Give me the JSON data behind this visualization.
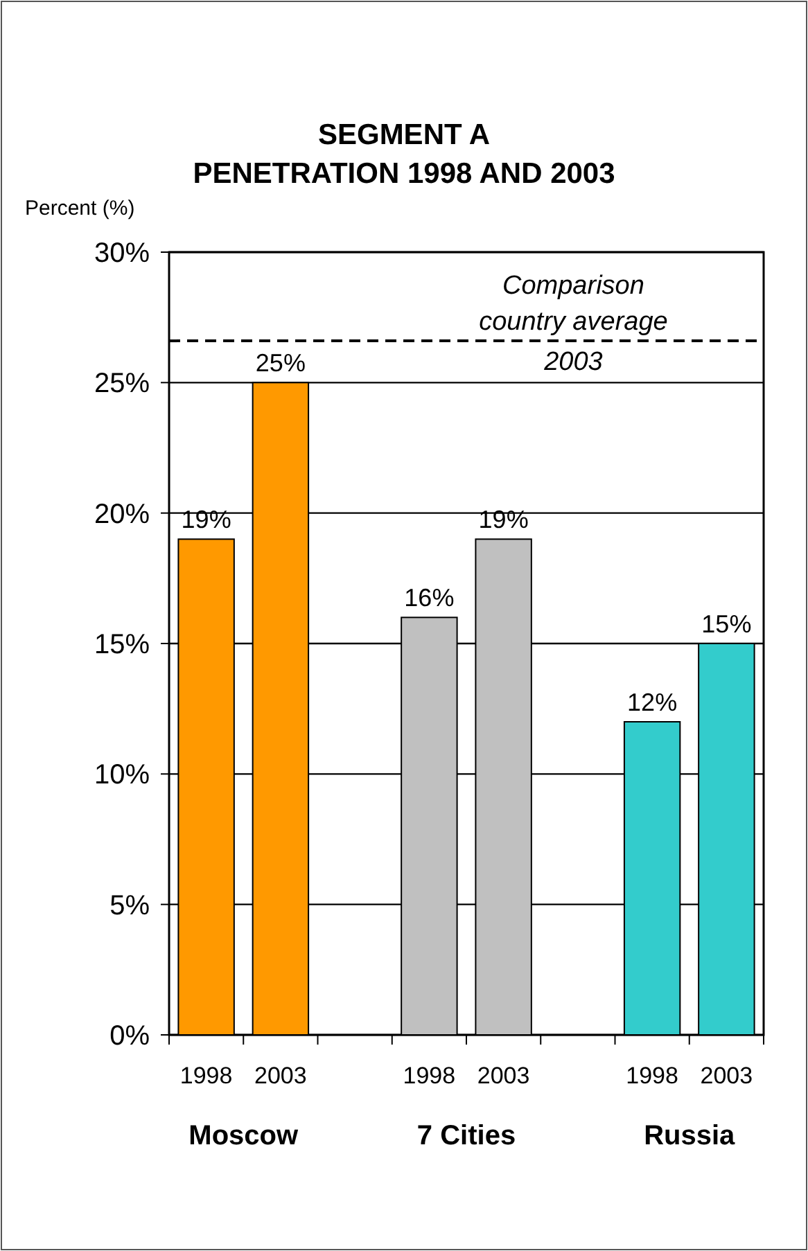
{
  "chart_data": {
    "type": "bar",
    "title": "SEGMENT A\nPENETRATION 1998 AND 2003",
    "ylabel": "Percent (%)",
    "categories": [
      "1998",
      "2003",
      null,
      "1998",
      "2003",
      null,
      "1998",
      "2003"
    ],
    "series": [
      {
        "color": "#ff9900",
        "values": [
          19,
          25,
          null,
          null,
          null,
          null,
          null,
          null
        ],
        "value_labels": [
          "19%",
          "25%",
          null,
          null,
          null,
          null,
          null,
          null
        ]
      },
      {
        "color": "#c0c0c0",
        "values": [
          null,
          null,
          null,
          16,
          19,
          null,
          null,
          null
        ],
        "value_labels": [
          null,
          null,
          null,
          "16%",
          "19%",
          null,
          null,
          null
        ]
      },
      {
        "color": "#33cccc",
        "values": [
          null,
          null,
          null,
          null,
          null,
          null,
          12,
          15
        ],
        "value_labels": [
          null,
          null,
          null,
          null,
          null,
          null,
          "12%",
          "15%"
        ]
      }
    ],
    "ylim": [
      0,
      30
    ],
    "yticks": [
      {
        "value": 0,
        "label": "0%"
      },
      {
        "value": 5,
        "label": "5%"
      },
      {
        "value": 10,
        "label": "10%"
      },
      {
        "value": 15,
        "label": "15%"
      },
      {
        "value": 20,
        "label": "20%"
      },
      {
        "value": 25,
        "label": "25%"
      },
      {
        "value": 30,
        "label": "30%"
      }
    ],
    "grid": "y",
    "annotations": [
      "Moscow",
      "7 Cities",
      "Russia"
    ],
    "ref_lines": [
      {
        "axis": "y",
        "value": 26.6,
        "label": "Comparison\ncountry average\n2003",
        "line_style": "dashed",
        "color": "#000000"
      }
    ]
  }
}
